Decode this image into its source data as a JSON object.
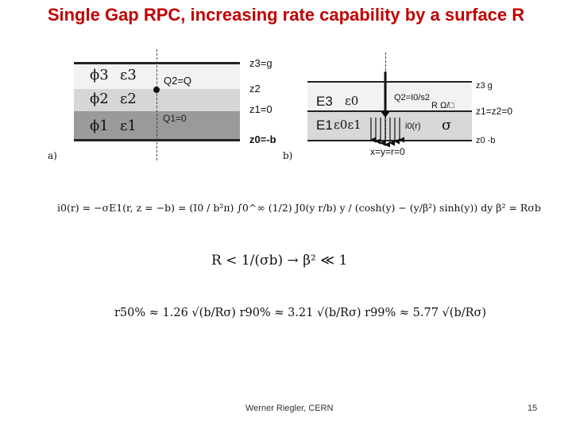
{
  "slide": {
    "title": "Single Gap RPC, increasing rate capability by a surface R",
    "author": "Werner Riegler, CERN",
    "page_number": "15"
  },
  "figure_a": {
    "caption": "a)",
    "layer3": {
      "phi": "ϕ3",
      "eps": "ε3"
    },
    "layer2": {
      "phi": "ϕ2",
      "eps": "ε2"
    },
    "layer1": {
      "phi": "ϕ1",
      "eps": "ε1"
    },
    "charge_q2": "Q2=Q",
    "charge_q1": "Q1=0",
    "z3": "z3=g",
    "z2": "z2",
    "z1": "z1=0",
    "z0": "z0=-b"
  },
  "figure_b": {
    "caption": "b)",
    "upper_region": {
      "e": "E3",
      "eps": "ε0"
    },
    "lower_region": {
      "e": "E1",
      "eps": "ε0ε1"
    },
    "charge": "Q2=I0/s2",
    "resistivity": "R Ω/□",
    "current": "i0(r)",
    "sigma": "σ",
    "origin": "x=y=r=0",
    "z_top": "z3  g",
    "z_mid": "z1=z2=0",
    "z_bottom": "z0  -b"
  },
  "equations": {
    "eq1": "i0(r) = −σE1(r, z = −b) = (I0 / b²π) ∫0^∞ (1/2) J0(y r/b) y / (cosh(y) − (y/β²) sinh(y)) dy      β² = Rσb",
    "eq2": "R < 1/(σb) → β² ≪ 1",
    "eq3": "r50% ≈ 1.26 √(b/Rσ)    r90% ≈ 3.21 √(b/Rσ)    r99% ≈ 5.77 √(b/Rσ)"
  }
}
